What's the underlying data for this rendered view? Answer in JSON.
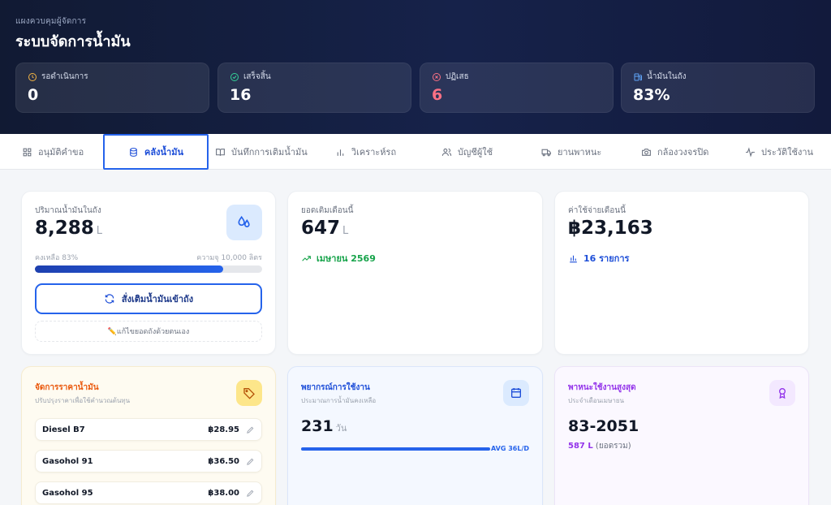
{
  "header": {
    "subtitle": "แผงควบคุมผู้จัดการ",
    "title": "ระบบจัดการน้ำมัน"
  },
  "stats": [
    {
      "label": "รอดำเนินการ",
      "value": "0",
      "icon": "clock-icon",
      "color": "#f5b544"
    },
    {
      "label": "เสร็จสิ้น",
      "value": "16",
      "icon": "check-circle-icon",
      "color": "#34d399"
    },
    {
      "label": "ปฏิเสธ",
      "value": "6",
      "icon": "x-circle-icon",
      "color": "#fb7185"
    },
    {
      "label": "น้ำมันในถัง",
      "value": "83%",
      "icon": "fuel-icon",
      "color": "#60a5fa"
    }
  ],
  "tabs": [
    {
      "label": "อนุมัติคำขอ",
      "icon": "grid-icon"
    },
    {
      "label": "คลังน้ำมัน",
      "icon": "database-icon",
      "active": true
    },
    {
      "label": "บันทึกการเติมน้ำมัน",
      "icon": "book-icon"
    },
    {
      "label": "วิเคราะห์รถ",
      "icon": "bar-chart-icon"
    },
    {
      "label": "บัญชีผู้ใช้",
      "icon": "users-icon"
    },
    {
      "label": "ยานพาหนะ",
      "icon": "truck-icon"
    },
    {
      "label": "กล้องวงจรปิด",
      "icon": "camera-icon"
    },
    {
      "label": "ประวัติใช้งาน",
      "icon": "activity-icon"
    }
  ],
  "tank": {
    "label": "ปริมาณน้ำมันในถัง",
    "amount": "8,288",
    "unit": "L",
    "remaining": "คงเหลือ 83%",
    "capacity": "ความจุ 10,000 ลิตร",
    "fill_fraction": 0.83,
    "order_button": "สั่งเติมน้ำมันเข้าถัง",
    "edit_button": "✏️แก้ไขยอดถังด้วยตนเอง",
    "icon": "droplets-icon"
  },
  "monthly_fill": {
    "label": "ยอดเติมเดือนนี้",
    "amount": "647",
    "unit": "L",
    "period": "เมษายน 2569",
    "icon": "trending-up-icon"
  },
  "monthly_cost": {
    "label": "ค่าใช้จ่ายเดือนนี้",
    "amount": "฿23,163",
    "count": "16 รายการ",
    "icon": "bar-chart-icon"
  },
  "prices": {
    "title": "จัดการราคาน้ำมัน",
    "subtitle": "ปรับปรุงราคาเพื่อใช้คำนวณต้นทุน",
    "icon": "tag-icon",
    "items": [
      {
        "name": "Diesel B7",
        "price": "฿28.95"
      },
      {
        "name": "Gasohol 91",
        "price": "฿36.50"
      },
      {
        "name": "Gasohol 95",
        "price": "฿38.00"
      }
    ]
  },
  "forecast": {
    "title": "พยากรณ์การใช้งาน",
    "subtitle": "ประมาณการน้ำมันคงเหลือ",
    "days": "231",
    "unit": "วัน",
    "avg": "AVG 36L/D",
    "icon": "calendar-icon"
  },
  "top_vehicle": {
    "title": "พาหนะใช้งานสูงสุด",
    "subtitle": "ประจำเดือนเมษายน",
    "plate": "83-2051",
    "liters": "587 L",
    "note": "(ยอดรวม)",
    "icon": "award-icon"
  },
  "colors": {
    "accent": "#2563eb",
    "green": "#16a34a",
    "orange": "#ea580c",
    "purple": "#9333ea",
    "reject": "#fb7185"
  }
}
